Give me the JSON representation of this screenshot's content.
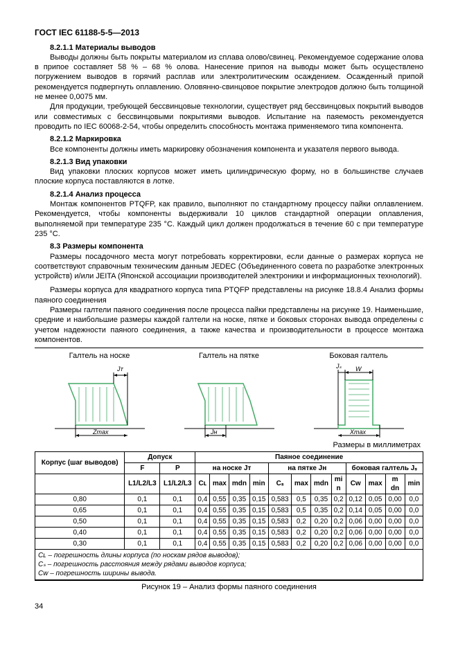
{
  "doc_header": "ГОСТ IEC 61188-5-5—2013",
  "s8211_title": "8.2.1.1 Материалы выводов",
  "s8211_p1": "Выводы должны быть покрыты материалом из сплава олово/свинец. Рекомендуемое содержание олова в припое составляет 58 % – 68 % олова. Нанесение припоя на выводы может быть осуществлено погружением выводов в горячий расплав или электролитическим осаждением. Осажденный припой рекомендуется подвергнуть оплавлению. Оловянно-свинцовое покрытие электродов должно быть толщиной не менее 0,0075 мм.",
  "s8211_p2": "Для продукции, требующей бессвинцовые технологии, существует ряд бессвинцовых покрытий выводов или совместимых с бессвинцовыми покрытиями выводов. Испытание на паяемость рекомендуется проводить по IEC 60068-2-54, чтобы определить способность монтажа применяемого типа компонента.",
  "s8212_title": "8.2.1.2 Маркировка",
  "s8212_p1": "Все компоненты должны иметь маркировку обозначения компонента и указателя первого вывода.",
  "s8213_title": "8.2.1.3 Вид упаковки",
  "s8213_p1": "Вид упаковки плоских корпусов может иметь цилиндрическую форму, но в большинстве случаев плоские корпуса поставляются в лотке.",
  "s8214_title": "8.2.1.4 Анализ процесса",
  "s8214_p1": "Монтаж компонентов PTQFP, как правило, выполняют по стандартному процессу пайки оплавлением. Рекомендуется, чтобы компоненты выдерживали 10 циклов стандартной операции оплавления, выполняемой при температуре 235 °С. Каждый цикл должен продолжаться в течение 60 с при температуре 235 °С.",
  "s83_title": "8.3 Размеры компонента",
  "s83_p1": "Размеры посадочного места могут потребовать корректировки, если данные о размерах корпуса не соответствуют справочным техническим данным JEDEC (Объединенного совета по разработке электронных устройств) и/или JEITA (Японской ассоциации производителей электроники и информационных технологий).",
  "s83_p2": "Размеры корпуса для квадратного корпуса типа PTQFP представлены на рисунке 18.8.4 Анализ формы паяного соединения",
  "s83_p3": "Размеры галтели паяного соединения после процесса пайки представлены на рисунке 19. Наименьшие, средние и наибольшие размеры каждой галтели на носке, пятке и боковых сторонах вывода определены с учетом надежности паяного соединения, а также качества и производительности в процессе монтажа компонентов.",
  "fig_labels": {
    "toe": "Галтель на носке",
    "heel": "Галтель на пятке",
    "side": "Боковая галтель"
  },
  "fig_dims": {
    "jt": "Jᴛ",
    "zmax": "Zmax",
    "jh": "Jн",
    "js": "Jₛ",
    "w": "W",
    "xmax": "Xmax"
  },
  "dim_caption": "Размеры в миллиметрах",
  "table_headers": {
    "group_korpus": "Корпус (шаг выводов)",
    "group_dopusk": "Допуск",
    "group_payanoe": "Паяное соединение",
    "f": "F",
    "p": "P",
    "na_noske": "на носке Jᴛ",
    "na_pyatke": "на пятке Jн",
    "bokovaya": "боковая галтель Jₛ",
    "l123": "L1/L2/L3",
    "l123b": "L1/L2/L3",
    "cl": "Cʟ",
    "max": "max",
    "mdn": "mdn",
    "min": "min",
    "cs": "Cₛ",
    "cw": "Cw"
  },
  "rows": [
    {
      "pitch": "0,80",
      "f": "0,1",
      "p": "0,1",
      "cl": "0,4",
      "jt_max": "0,55",
      "jt_mdn": "0,35",
      "jt_min": "0,15",
      "cs": "0,583",
      "jh_max": "0,5",
      "jh_mdn": "0,35",
      "jh_min": "0,2",
      "cw": "0,12",
      "js_max": "0,05",
      "js_mdn": "0,00",
      "js_min": "0,0"
    },
    {
      "pitch": "0,65",
      "f": "0,1",
      "p": "0,1",
      "cl": "0,4",
      "jt_max": "0,55",
      "jt_mdn": "0,35",
      "jt_min": "0,15",
      "cs": "0,583",
      "jh_max": "0,5",
      "jh_mdn": "0,35",
      "jh_min": "0,2",
      "cw": "0,14",
      "js_max": "0,05",
      "js_mdn": "0,00",
      "js_min": "0,0"
    },
    {
      "pitch": "0,50",
      "f": "0,1",
      "p": "0,1",
      "cl": "0,4",
      "jt_max": "0,55",
      "jt_mdn": "0,35",
      "jt_min": "0,15",
      "cs": "0,583",
      "jh_max": "0,2",
      "jh_mdn": "0,20",
      "jh_min": "0,2",
      "cw": "0,06",
      "js_max": "0,00",
      "js_mdn": "0,00",
      "js_min": "0,0"
    },
    {
      "pitch": "0,40",
      "f": "0,1",
      "p": "0,1",
      "cl": "0,4",
      "jt_max": "0,55",
      "jt_mdn": "0,35",
      "jt_min": "0,15",
      "cs": "0,583",
      "jh_max": "0,2",
      "jh_mdn": "0,20",
      "jh_min": "0,2",
      "cw": "0,06",
      "js_max": "0,00",
      "js_mdn": "0,00",
      "js_min": "0,0"
    },
    {
      "pitch": "0,30",
      "f": "0,1",
      "p": "0,1",
      "cl": "0,4",
      "jt_max": "0,55",
      "jt_mdn": "0,35",
      "jt_min": "0,15",
      "cs": "0,583",
      "jh_max": "0,2",
      "jh_mdn": "0,20",
      "jh_min": "0,2",
      "cw": "0,06",
      "js_max": "0,00",
      "js_mdn": "0,00",
      "js_min": "0,0"
    }
  ],
  "notes": {
    "cl": "Cʟ –   погрешность длины корпуса (по носкам рядов выводов);",
    "cs": "Cₛ –   погрешность расстояния между рядами выводов корпуса;",
    "cw": "Cw –  погрешность ширины вывода."
  },
  "fig_caption": "Рисунок 19  –  Анализ формы паяного соединения",
  "page_num": "34"
}
